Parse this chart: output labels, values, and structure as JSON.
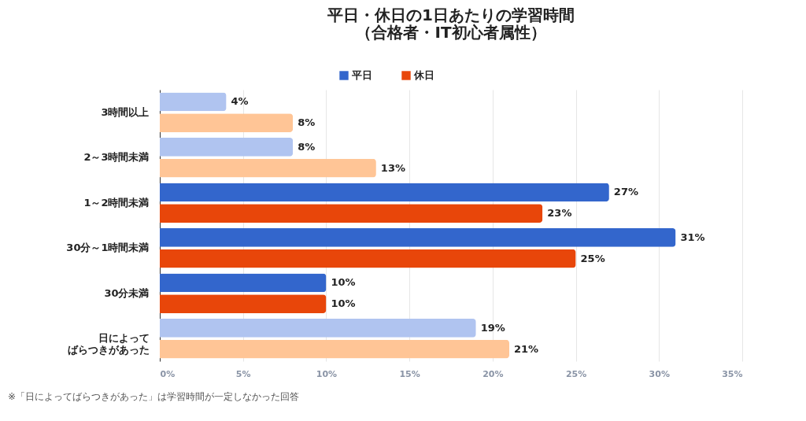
{
  "chart_data": {
    "type": "bar",
    "orientation": "horizontal",
    "title": "平日・休日の1日あたりの学習時間（合格者・IT初心者属性）",
    "categories": [
      "3時間以上",
      "2～3時間未満",
      "1～2時間未満",
      "30分～1時間未満",
      "30分未満",
      "日によってばらつきがあった"
    ],
    "series": [
      {
        "name": "平日",
        "color": "#3366cc",
        "colors": [
          "#b0c4f0",
          "#b0c4f0",
          "#3366cc",
          "#3366cc",
          "#3366cc",
          "#b0c4f0"
        ],
        "values": [
          4,
          8,
          27,
          31,
          10,
          19
        ],
        "value_labels": [
          "4%",
          "8%",
          "27%",
          "31%",
          "10%",
          "19%"
        ]
      },
      {
        "name": "休日",
        "color": "#e8460a",
        "colors": [
          "#ffc596",
          "#ffc596",
          "#e8460a",
          "#e8460a",
          "#e8460a",
          "#ffc596"
        ],
        "values": [
          8,
          13,
          23,
          25,
          10,
          21
        ],
        "value_labels": [
          "8%",
          "13%",
          "23%",
          "25%",
          "10%",
          "21%"
        ]
      }
    ],
    "xlim": [
      0,
      35
    ],
    "xticks": [
      {
        "value": 0,
        "label": "0%"
      },
      {
        "value": 5,
        "label": "5%"
      },
      {
        "value": 10,
        "label": "10%"
      },
      {
        "value": 15,
        "label": "15%"
      },
      {
        "value": 20,
        "label": "20%"
      },
      {
        "value": 25,
        "label": "25%"
      },
      {
        "value": 30,
        "label": "30%"
      },
      {
        "value": 35,
        "label": "35%"
      }
    ],
    "grid": "x",
    "legend": "top",
    "annotations": [
      "※「日によってばらつきがあった」は学習時間が一定しなかった回答"
    ]
  }
}
